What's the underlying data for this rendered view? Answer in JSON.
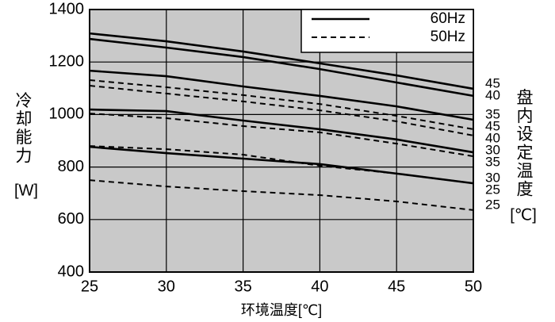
{
  "chart_data": {
    "type": "line",
    "x_label": "环境温度[℃]",
    "y_label": "冷却能力",
    "y_unit": "[W]",
    "right_label": "盘内设定温度",
    "right_unit": "[℃]",
    "x": [
      25,
      30,
      35,
      40,
      45,
      50
    ],
    "xlim": [
      25,
      50
    ],
    "xticks": [
      25,
      30,
      35,
      40,
      45,
      50
    ],
    "ylim": [
      400,
      1400
    ],
    "yticks": [
      400,
      600,
      800,
      1000,
      1200,
      1400
    ],
    "grid": true,
    "background": "#c9c9c9",
    "color": "#000000",
    "legend": [
      {
        "label": "60Hz",
        "dash": "solid"
      },
      {
        "label": "50Hz",
        "dash": "dashed"
      }
    ],
    "legend_position": "upper right",
    "series": [
      {
        "name": "45",
        "dash": "solid",
        "values": [
          1309,
          1279,
          1240,
          1195,
          1149,
          1098
        ]
      },
      {
        "name": "40",
        "dash": "solid",
        "values": [
          1288,
          1255,
          1219,
          1173,
          1122,
          1071
        ]
      },
      {
        "name": "35",
        "dash": "solid",
        "values": [
          1167,
          1146,
          1107,
          1071,
          1031,
          980
        ]
      },
      {
        "name": "45",
        "dash": "dashed",
        "values": [
          1131,
          1104,
          1074,
          1040,
          995,
          944
        ]
      },
      {
        "name": "40",
        "dash": "dashed",
        "values": [
          1110,
          1080,
          1050,
          1016,
          974,
          920
        ]
      },
      {
        "name": "30",
        "dash": "solid",
        "values": [
          1019,
          1013,
          977,
          944,
          905,
          856
        ]
      },
      {
        "name": "35",
        "dash": "dashed",
        "values": [
          1004,
          986,
          956,
          932,
          889,
          841
        ]
      },
      {
        "name": "30",
        "dash": "dashed",
        "values": [
          880,
          868,
          847,
          805,
          775,
          738
        ]
      },
      {
        "name": "25",
        "dash": "solid",
        "values": [
          877,
          853,
          832,
          811,
          775,
          738
        ]
      },
      {
        "name": "25",
        "dash": "dashed",
        "values": [
          750,
          726,
          708,
          693,
          669,
          636
        ]
      }
    ]
  }
}
